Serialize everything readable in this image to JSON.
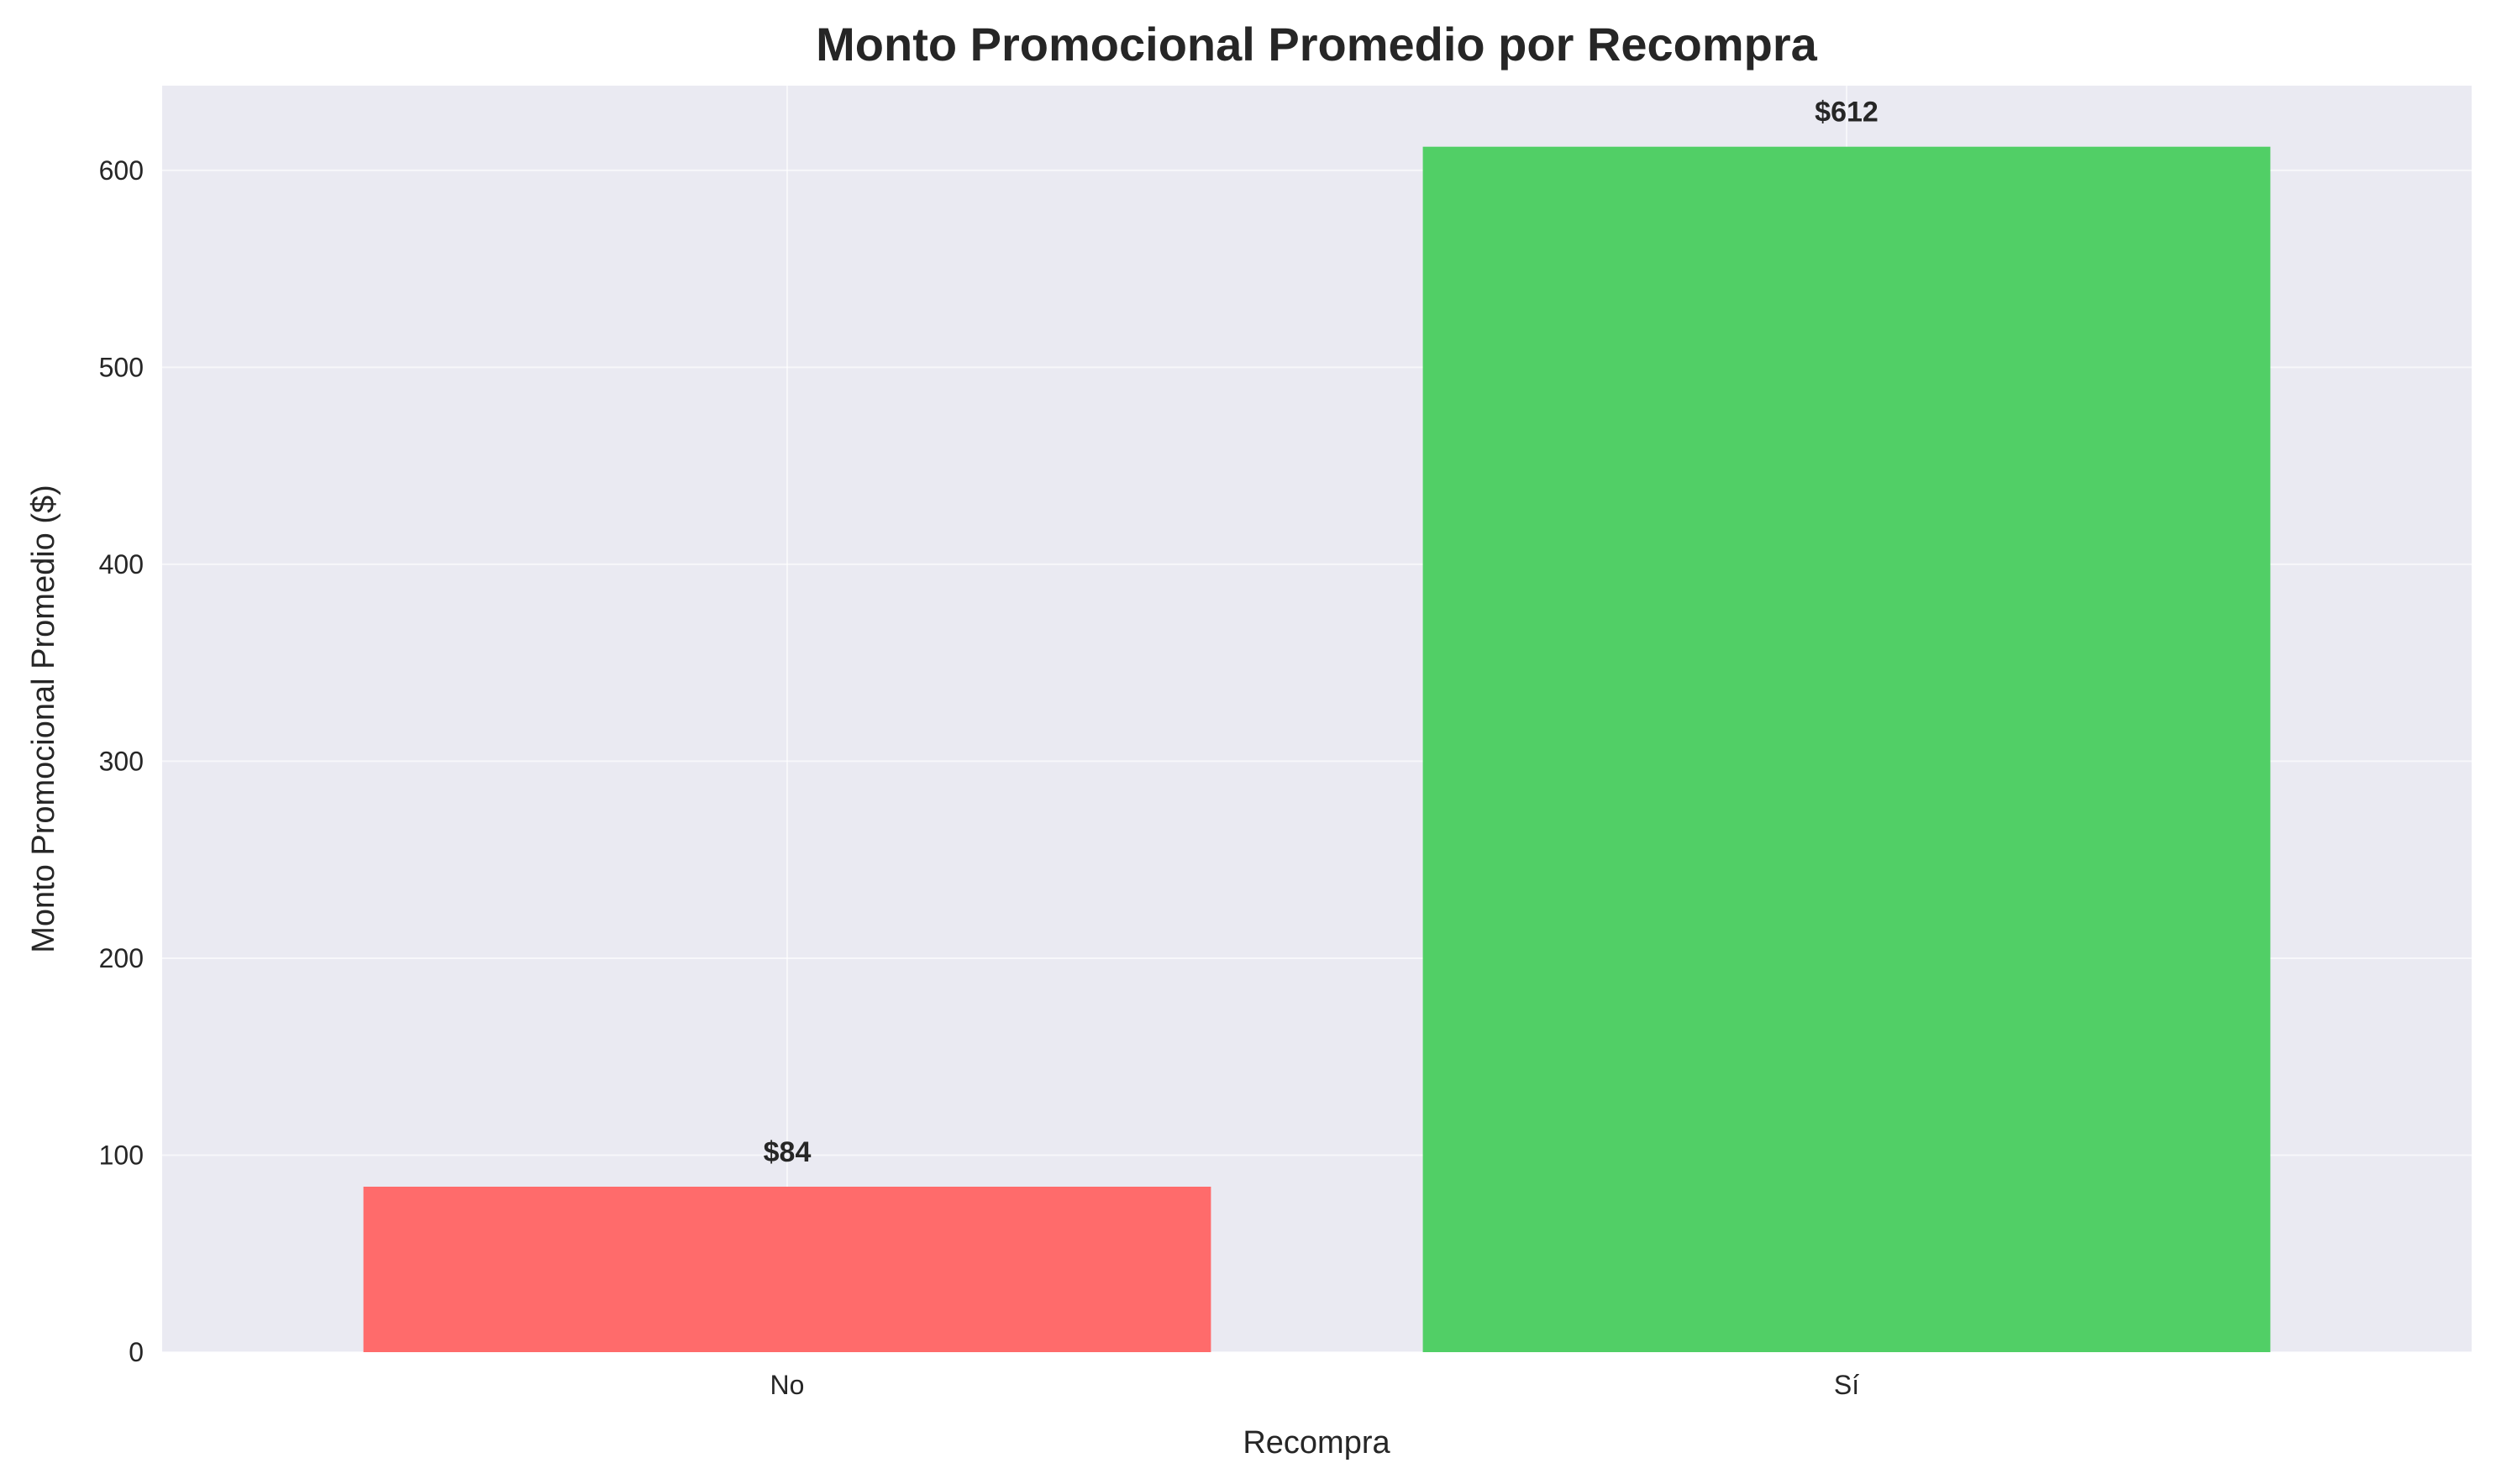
{
  "chart_data": {
    "type": "bar",
    "title": "Monto Promocional Promedio por Recompra",
    "xlabel": "Recompra",
    "ylabel": "Monto Promocional Promedio ($)",
    "categories": [
      "No",
      "Sí"
    ],
    "values": [
      84,
      612
    ],
    "data_labels": [
      "$84",
      "$612"
    ],
    "colors": [
      "#ff6b6b",
      "#51cf66"
    ],
    "ylim": [
      0,
      643
    ],
    "yticks": [
      0,
      100,
      200,
      300,
      400,
      500,
      600
    ],
    "grid": true,
    "background_color": "#eaeaf2"
  }
}
